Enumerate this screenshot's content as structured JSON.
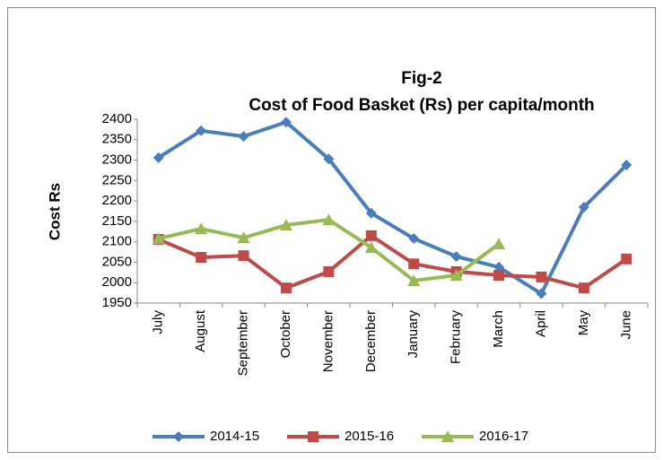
{
  "chart_data": {
    "type": "line",
    "title": [
      "Fig-2",
      "Cost of Food Basket (Rs) per capita/month"
    ],
    "ylabel": "Cost Rs",
    "categories": [
      "July",
      "August",
      "September",
      "October",
      "November",
      "December",
      "January",
      "February",
      "March",
      "April",
      "May",
      "June"
    ],
    "series": [
      {
        "name": "2014-15",
        "color": "#4a7ebb",
        "marker": "diamond",
        "values": [
          2306,
          2372,
          2358,
          2393,
          2303,
          2170,
          2108,
          2064,
          2038,
          1973,
          2185,
          2288
        ]
      },
      {
        "name": "2015-16",
        "color": "#be4b48",
        "marker": "square",
        "values": [
          2106,
          2062,
          2066,
          1987,
          2027,
          2115,
          2046,
          2027,
          2018,
          2014,
          1987,
          2058
        ]
      },
      {
        "name": "2016-17",
        "color": "#98b954",
        "marker": "triangle",
        "values": [
          2108,
          2132,
          2110,
          2141,
          2154,
          2086,
          2005,
          2018,
          2095,
          null,
          null,
          null
        ]
      }
    ],
    "ylim": [
      1950,
      2400
    ],
    "yticks": [
      1950,
      2000,
      2050,
      2100,
      2150,
      2200,
      2250,
      2300,
      2350,
      2400
    ],
    "grid": false,
    "legend": "bottom"
  }
}
